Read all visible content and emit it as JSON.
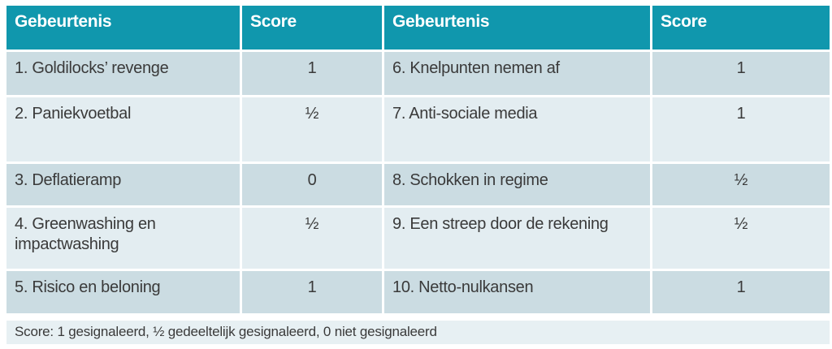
{
  "table": {
    "header": {
      "event_left": "Gebeurtenis",
      "score_left": "Score",
      "event_right": "Gebeurtenis",
      "score_right": "Score"
    },
    "rows": [
      {
        "left": {
          "label": "1. Goldilocks’ revenge",
          "score": "1"
        },
        "right": {
          "label": "6. Knelpunten nemen af",
          "score": "1"
        }
      },
      {
        "left": {
          "label": "2. Paniekvoetbal",
          "score": "½"
        },
        "right": {
          "label": "7. Anti-sociale media",
          "score": "1"
        }
      },
      {
        "left": {
          "label": "3. Deflatieramp",
          "score": "0"
        },
        "right": {
          "label": "8. Schokken in regime",
          "score": "½"
        }
      },
      {
        "left": {
          "label": "4. Greenwashing en impactwashing",
          "score": "½"
        },
        "right": {
          "label": "9. Een streep door de rekening",
          "score": "½"
        }
      },
      {
        "left": {
          "label": "5. Risico en beloning",
          "score": "1"
        },
        "right": {
          "label": "10. Netto-nulkansen",
          "score": "1"
        }
      }
    ],
    "footnote": "Score: 1 gesignaleerd, ½ gedeeltelijk gesignaleerd, 0 niet gesignaleerd"
  },
  "colors": {
    "header_bg": "#1097AD",
    "header_text": "#FFFFFF",
    "row_odd_bg": "#CBDCE2",
    "row_even_bg": "#E3EDF1",
    "footnote_bg": "#E7F0F3",
    "text": "#3A3A3A",
    "page_bg": "#FFFFFF"
  }
}
